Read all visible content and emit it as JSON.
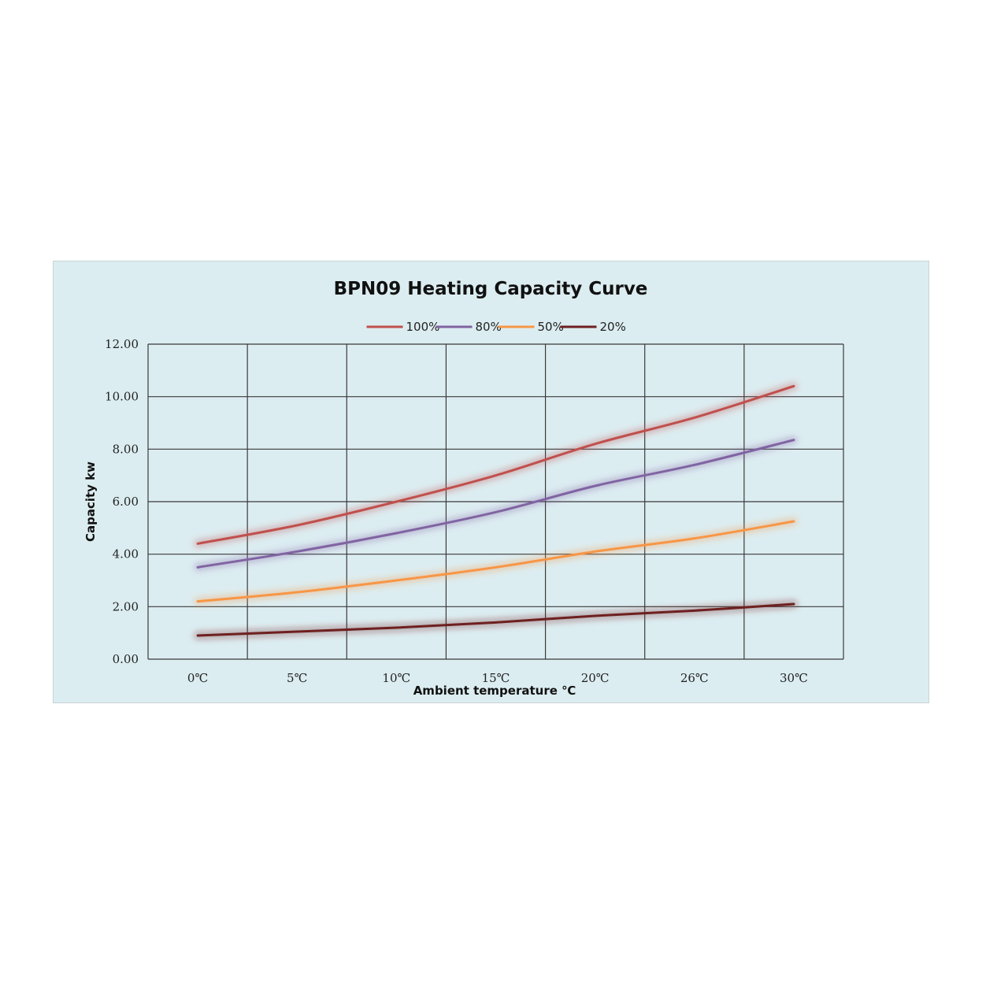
{
  "chart_data": {
    "type": "line",
    "title": "BPN09 Heating Capacity Curve",
    "xlabel": "Ambient temperature ℃",
    "ylabel": "Capacity kw",
    "categories": [
      "0℃",
      "5℃",
      "10℃",
      "15℃",
      "20℃",
      "26℃",
      "30℃"
    ],
    "ylim": [
      0,
      12
    ],
    "yticks": [
      "0.00",
      "2.00",
      "4.00",
      "6.00",
      "8.00",
      "10.00",
      "12.00"
    ],
    "grid": true,
    "legend_position": "top",
    "series": [
      {
        "name": "100%",
        "color": "#c0504d",
        "values": [
          4.4,
          5.1,
          6.0,
          7.0,
          8.2,
          9.2,
          10.4
        ]
      },
      {
        "name": "80%",
        "color": "#8064a2",
        "values": [
          3.5,
          4.1,
          4.8,
          5.6,
          6.6,
          7.4,
          8.35
        ]
      },
      {
        "name": "50%",
        "color": "#f79646",
        "values": [
          2.2,
          2.55,
          3.0,
          3.5,
          4.1,
          4.6,
          5.25
        ]
      },
      {
        "name": "20%",
        "color": "#6e2020",
        "values": [
          0.9,
          1.05,
          1.2,
          1.4,
          1.65,
          1.85,
          2.1
        ]
      }
    ]
  }
}
